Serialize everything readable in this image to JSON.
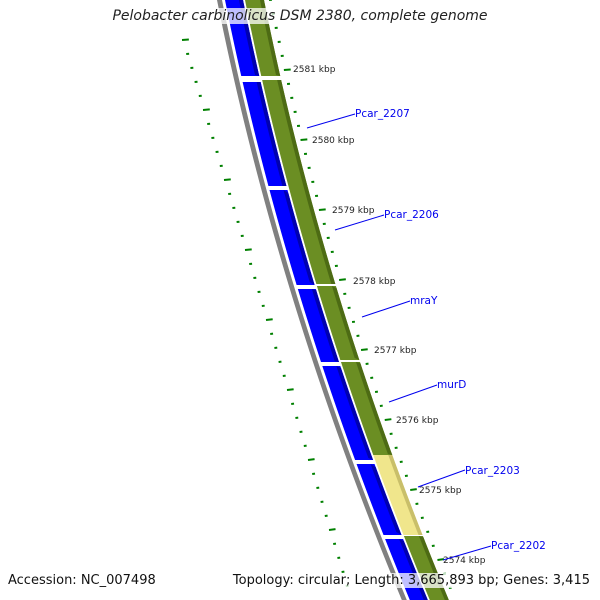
{
  "title": "Pelobacter carbinolicus DSM 2380, complete genome",
  "footer": {
    "accession": "Accession: NC_007498",
    "stats": "Topology: circular; Length: 3,665,893 bp; Genes: 3,415"
  },
  "ticks": [
    "2581 kbp",
    "2580 kbp",
    "2579 kbp",
    "2578 kbp",
    "2577 kbp",
    "2576 kbp",
    "2575 kbp",
    "2574 kbp"
  ],
  "genes": [
    "Pcar_2207",
    "Pcar_2206",
    "mraY",
    "murD",
    "Pcar_2203",
    "Pcar_2202"
  ],
  "colors": {
    "cds": "#0000ff",
    "feature": "#6b8e23",
    "highlight": "#f0e68c",
    "backbone": "#808080",
    "ticks": "#008000",
    "label": "#0000ee"
  }
}
